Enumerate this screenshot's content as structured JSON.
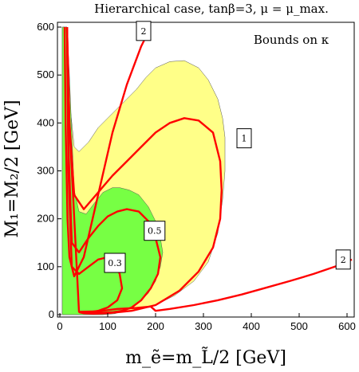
{
  "chart_data": {
    "type": "area",
    "title": "Hierarchical case, tanβ=3, μ = μ_max.",
    "xlabel": "m_ẽ=m_L̃/2  [GeV]",
    "ylabel": "M₁=M₂/2  [GeV]",
    "annotation": "Bounds on κ",
    "xlim": [
      -5,
      615
    ],
    "ylim": [
      -5,
      610
    ],
    "x_ticks": [
      0,
      100,
      200,
      300,
      400,
      500,
      600
    ],
    "y_ticks": [
      0,
      100,
      200,
      300,
      400,
      500,
      600
    ],
    "grid": false,
    "colors": {
      "yellow_region": "#ffff88",
      "green_region": "#77ff44",
      "contour": "#ff0000",
      "frame": "#000000"
    },
    "regions": [
      {
        "fill": "yellow",
        "x": [
          5,
          15,
          20,
          30,
          40,
          60,
          80,
          100,
          120,
          140,
          160,
          180,
          200,
          230,
          260,
          290,
          310,
          330,
          340,
          345,
          345,
          340,
          330,
          310,
          280,
          240,
          200,
          160,
          120,
          90,
          60,
          40,
          20,
          10,
          5
        ],
        "y": [
          600,
          600,
          450,
          350,
          340,
          360,
          390,
          410,
          430,
          450,
          470,
          495,
          515,
          528,
          530,
          515,
          490,
          450,
          410,
          370,
          300,
          240,
          170,
          110,
          70,
          40,
          20,
          10,
          5,
          0,
          0,
          0,
          0,
          0,
          0
        ]
      },
      {
        "fill": "green",
        "x": [
          5,
          15,
          20,
          30,
          40,
          55,
          70,
          90,
          110,
          125,
          145,
          165,
          185,
          200,
          210,
          215,
          210,
          200,
          185,
          165,
          140,
          115,
          90,
          60,
          40,
          20,
          10,
          5
        ],
        "y": [
          600,
          600,
          500,
          260,
          215,
          210,
          230,
          255,
          265,
          265,
          260,
          250,
          225,
          195,
          160,
          130,
          100,
          70,
          45,
          25,
          10,
          2,
          0,
          0,
          0,
          0,
          0,
          0
        ]
      }
    ],
    "contours": [
      {
        "label": "2",
        "x": [
          10,
          11,
          12,
          14,
          16,
          20,
          30,
          50,
          80,
          110,
          140,
          170,
          180
        ],
        "y": [
          600,
          500,
          400,
          300,
          200,
          120,
          80,
          120,
          250,
          380,
          480,
          560,
          580
        ]
      },
      {
        "label": "2",
        "x": [
          15,
          20,
          40,
          80,
          120,
          160,
          190,
          200,
          230,
          280,
          330,
          380,
          430,
          480,
          530,
          580,
          610
        ],
        "y": [
          600,
          400,
          6,
          7,
          12,
          14,
          17,
          8,
          12,
          20,
          30,
          42,
          56,
          70,
          85,
          102,
          115
        ]
      },
      {
        "label": "1",
        "x": [
          15,
          20,
          30,
          50,
          80,
          110,
          140,
          170,
          200,
          230,
          260,
          290,
          320,
          335,
          338,
          335,
          320,
          290,
          250,
          200,
          150,
          100,
          70,
          50,
          40
        ],
        "y": [
          600,
          400,
          250,
          220,
          255,
          290,
          320,
          350,
          380,
          400,
          410,
          405,
          380,
          320,
          260,
          200,
          140,
          90,
          50,
          20,
          8,
          3,
          2,
          3,
          5
        ]
      },
      {
        "label": "0.5",
        "x": [
          15,
          18,
          25,
          40,
          60,
          80,
          100,
          120,
          140,
          165,
          185,
          200,
          210,
          205,
          190,
          170,
          150,
          130,
          110,
          90,
          70,
          60,
          50
        ],
        "y": [
          600,
          350,
          150,
          130,
          160,
          185,
          205,
          215,
          220,
          215,
          195,
          160,
          120,
          85,
          55,
          30,
          15,
          8,
          5,
          4,
          4,
          4,
          4
        ]
      },
      {
        "label": "0.3",
        "x": [
          15,
          18,
          25,
          40,
          60,
          80,
          100,
          115,
          125,
          130,
          120,
          100,
          80,
          60,
          45
        ],
        "y": [
          600,
          300,
          100,
          85,
          100,
          115,
          120,
          110,
          85,
          55,
          30,
          15,
          8,
          5,
          5
        ]
      }
    ],
    "contour_labels": [
      {
        "text": "2",
        "x": 175,
        "y": 592
      },
      {
        "text": "1",
        "x": 385,
        "y": 368
      },
      {
        "text": "0.5",
        "x": 198,
        "y": 175
      },
      {
        "text": "0.3",
        "x": 115,
        "y": 108
      },
      {
        "text": "2",
        "x": 592,
        "y": 115
      }
    ]
  }
}
